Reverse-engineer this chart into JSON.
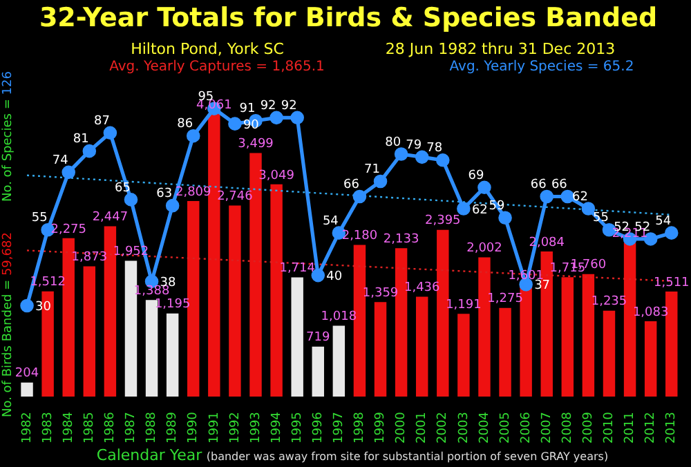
{
  "chart_data": {
    "type": "bar",
    "title": "32-Year Totals for Birds & Species Banded",
    "subtitle": "Hilton Pond, York SC",
    "xlabel": "Calendar Year",
    "ylabel": "No. of Birds Banded = 59,682",
    "y2label": "No. of Species = 126",
    "annotations": [
      "28 Jun 1982 thru 31 Dec 2013",
      "Avg. Yearly Captures = 1,865.1",
      "Avg. Yearly Species = 65.2",
      "(bander was away from site for substantial portion of seven GRAY years)"
    ],
    "categories": [
      "1982",
      "1983",
      "1984",
      "1985",
      "1986",
      "1987",
      "1988",
      "1989",
      "1990",
      "1991",
      "1992",
      "1993",
      "1994",
      "1995",
      "1996",
      "1997",
      "1998",
      "1999",
      "2000",
      "2001",
      "2002",
      "2003",
      "2004",
      "2005",
      "2006",
      "2007",
      "2008",
      "2009",
      "2010",
      "2011",
      "2012",
      "2013"
    ],
    "series": [
      {
        "values": [
          204,
          1512,
          2275,
          1873,
          2447,
          1952,
          1388,
          1195,
          2809,
          4061,
          2746,
          3499,
          3049,
          1714,
          719,
          1018,
          2180,
          1359,
          2133,
          1436,
          2395,
          1191,
          2002,
          1275,
          1601,
          2084,
          1715,
          1760,
          1235,
          2211,
          1083,
          1511
        ],
        "colors": [
          "#e8e8e8",
          "#ee1111",
          "#ee1111",
          "#ee1111",
          "#ee1111",
          "#e8e8e8",
          "#e8e8e8",
          "#e8e8e8",
          "#ee1111",
          "#ee1111",
          "#ee1111",
          "#ee1111",
          "#ee1111",
          "#e8e8e8",
          "#e8e8e8",
          "#e8e8e8",
          "#ee1111",
          "#ee1111",
          "#ee1111",
          "#ee1111",
          "#ee1111",
          "#ee1111",
          "#ee1111",
          "#ee1111",
          "#ee1111",
          "#ee1111",
          "#ee1111",
          "#ee1111",
          "#ee1111",
          "#ee1111",
          "#ee1111",
          "#ee1111"
        ],
        "value_labels": [
          "204",
          "1,512",
          "2,275",
          "1,873",
          "2,447",
          "1,952",
          "1,388",
          "1,195",
          "2,809",
          "4,061",
          "2,746",
          "3,499",
          "3,049",
          "1,714",
          "719",
          "1,018",
          "2,180",
          "1,359",
          "2,133",
          "1,436",
          "2,395",
          "1,191",
          "2,002",
          "1,275",
          "1,601",
          "2,084",
          "1,715",
          "1,760",
          "1,235",
          "2,211",
          "1,083",
          "1,511"
        ]
      },
      {
        "type": "line",
        "axis": "y2",
        "color": "#2f8fff",
        "marker": "circle",
        "values": [
          30,
          55,
          74,
          81,
          87,
          65,
          38,
          63,
          86,
          95,
          90,
          91,
          92,
          92,
          40,
          54,
          66,
          71,
          80,
          79,
          78,
          62,
          69,
          59,
          37,
          66,
          66,
          62,
          55,
          52,
          52,
          54
        ],
        "value_labels": [
          "30",
          "55",
          "74",
          "81",
          "87",
          "65",
          "38",
          "63",
          "86",
          "95",
          "90",
          "91",
          "92",
          "92",
          "40",
          "54",
          "66",
          "71",
          "80",
          "79",
          "78",
          "62",
          "69",
          "59",
          "37",
          "66",
          "66",
          "62",
          "55",
          "52",
          "52",
          "54"
        ]
      },
      {
        "type": "line",
        "axis": "y",
        "color": "#dd2222",
        "line_style": "dotted",
        "marker": "none",
        "values": [
          2100,
          null,
          null,
          null,
          null,
          null,
          null,
          null,
          null,
          null,
          null,
          null,
          null,
          null,
          null,
          null,
          null,
          null,
          null,
          null,
          null,
          null,
          null,
          null,
          null,
          null,
          null,
          null,
          null,
          null,
          null,
          1660
        ]
      },
      {
        "type": "line",
        "axis": "y2",
        "color": "#33aaee",
        "line_style": "dotted",
        "marker": "none",
        "values": [
          73,
          null,
          null,
          null,
          null,
          null,
          null,
          null,
          null,
          null,
          null,
          null,
          null,
          null,
          null,
          null,
          null,
          null,
          null,
          null,
          null,
          null,
          null,
          null,
          null,
          null,
          null,
          null,
          null,
          null,
          null,
          60
        ]
      }
    ],
    "legend": false,
    "grid": false,
    "tick_labels": "x"
  }
}
